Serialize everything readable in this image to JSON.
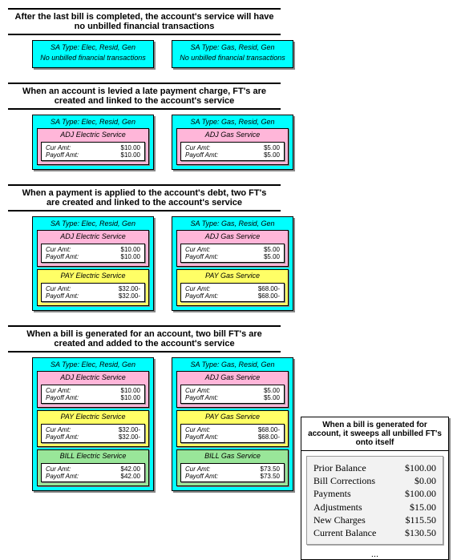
{
  "sections": [
    {
      "title": "After the last bill is completed, the account's service will have no unbilled financial transactions",
      "cards": [
        {
          "sa": "SA Type: Elec, Resid, Gen",
          "note": "No unbilled financial transactions",
          "fts": []
        },
        {
          "sa": "SA Type: Gas, Resid, Gen",
          "note": "No unbilled financial transactions",
          "fts": []
        }
      ]
    },
    {
      "title": "When an account is levied a late payment charge, FT's are created and linked to the account's service",
      "cards": [
        {
          "sa": "SA Type: Elec, Resid, Gen",
          "fts": [
            {
              "kind": "adj",
              "title": "ADJ Electric Service",
              "cur": "$10.00",
              "pay": "$10.00"
            }
          ]
        },
        {
          "sa": "SA Type: Gas, Resid, Gen",
          "fts": [
            {
              "kind": "adj",
              "title": "ADJ Gas Service",
              "cur": "$5.00",
              "pay": "$5.00"
            }
          ]
        }
      ]
    },
    {
      "title": "When a payment is applied to the account's debt, two FT's are created and linked to the account's service",
      "cards": [
        {
          "sa": "SA Type: Elec, Resid, Gen",
          "fts": [
            {
              "kind": "adj",
              "title": "ADJ Electric Service",
              "cur": "$10.00",
              "pay": "$10.00"
            },
            {
              "kind": "pay",
              "title": "PAY Electric Service",
              "cur": "$32.00-",
              "pay": "$32.00-"
            }
          ]
        },
        {
          "sa": "SA Type: Gas, Resid, Gen",
          "fts": [
            {
              "kind": "adj",
              "title": "ADJ Gas Service",
              "cur": "$5.00",
              "pay": "$5.00"
            },
            {
              "kind": "pay",
              "title": "PAY Gas Service",
              "cur": "$68.00-",
              "pay": "$68.00-"
            }
          ]
        }
      ]
    },
    {
      "title": "When a bill is generated for an account, two bill FT's are created and added to the account's service",
      "cards": [
        {
          "sa": "SA Type: Elec, Resid, Gen",
          "fts": [
            {
              "kind": "adj",
              "title": "ADJ Electric Service",
              "cur": "$10.00",
              "pay": "$10.00"
            },
            {
              "kind": "pay",
              "title": "PAY Electric Service",
              "cur": "$32.00-",
              "pay": "$32.00-"
            },
            {
              "kind": "bill",
              "title": "BILL Electric Service",
              "cur": "$42.00",
              "pay": "$42.00"
            }
          ]
        },
        {
          "sa": "SA Type: Gas, Resid, Gen",
          "fts": [
            {
              "kind": "adj",
              "title": "ADJ Gas Service",
              "cur": "$5.00",
              "pay": "$5.00"
            },
            {
              "kind": "pay",
              "title": "PAY Gas Service",
              "cur": "$68.00-",
              "pay": "$68.00-"
            },
            {
              "kind": "bill",
              "title": "BILL Gas Service",
              "cur": "$73.50",
              "pay": "$73.50"
            }
          ]
        }
      ]
    }
  ],
  "summary": {
    "title": "When a bill is generated for account, it sweeps all unbilled FT's onto itself",
    "rows": [
      {
        "label": "Prior Balance",
        "value": "$100.00"
      },
      {
        "label": "Bill Corrections",
        "value": "$0.00"
      },
      {
        "label": "Payments",
        "value": "$100.00"
      },
      {
        "label": "Adjustments",
        "value": "$15.00"
      },
      {
        "label": "New Charges",
        "value": "$115.50"
      },
      {
        "label": "Current Balance",
        "value": "$130.50"
      }
    ],
    "dots": "..."
  },
  "labels": {
    "cur": "Cur Amt:",
    "pay": "Payoff Amt:"
  },
  "colors": {
    "sa_bg": "#00ffff",
    "adj_bg": "#ffb6d9",
    "pay_bg": "#ffff66",
    "bill_bg": "#99e699",
    "summary_body_bg": "#f2f2f2"
  }
}
